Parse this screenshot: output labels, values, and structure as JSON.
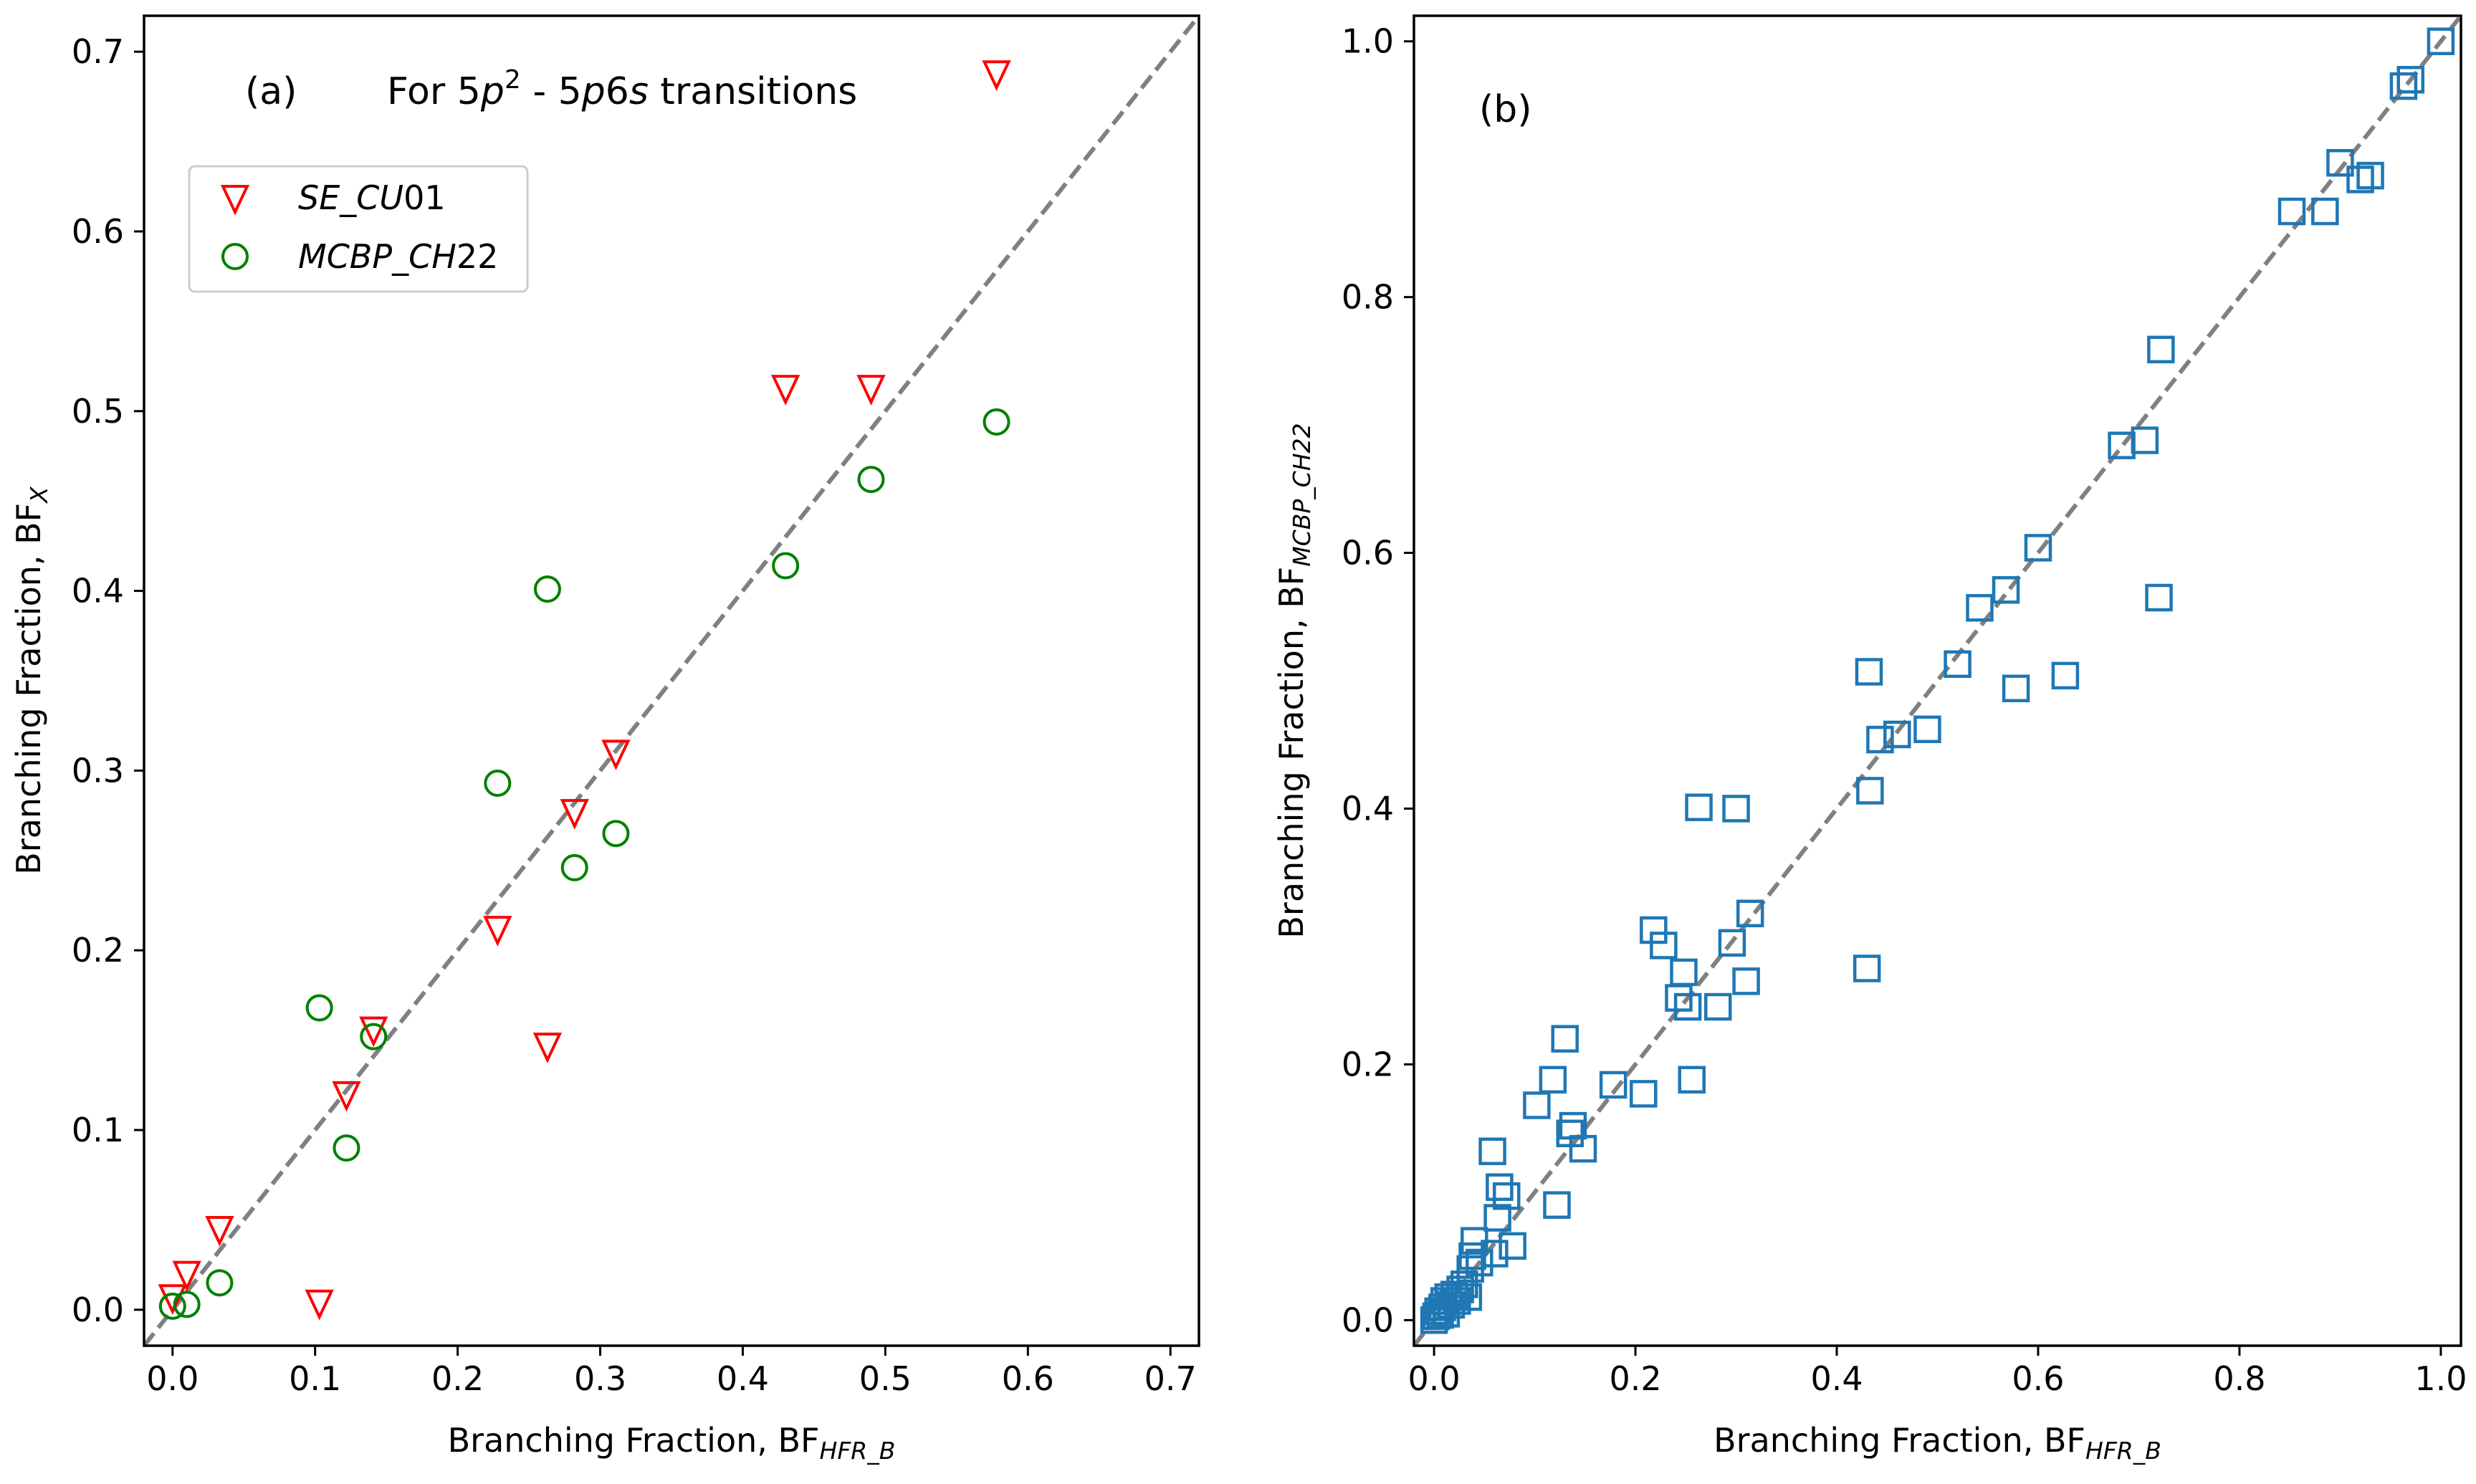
{
  "chart_data": [
    {
      "type": "scatter",
      "panel_label": "(a)",
      "annotation": {
        "prefix": "For 5",
        "p": "p",
        "sup": "2",
        "mid": " - 5",
        "p6": "p",
        "six": "6",
        "s": "s",
        "suffix": " transitions"
      },
      "xlabel": {
        "main": "Branching Fraction, BF",
        "sub": "HFR_B"
      },
      "ylabel": {
        "main": "Branching Fraction, BF",
        "sub": "X"
      },
      "xlim": [
        -0.02,
        0.72
      ],
      "ylim": [
        -0.02,
        0.72
      ],
      "xticks": [
        0.0,
        0.1,
        0.2,
        0.3,
        0.4,
        0.5,
        0.6,
        0.7
      ],
      "yticks": [
        0.0,
        0.1,
        0.2,
        0.3,
        0.4,
        0.5,
        0.6,
        0.7
      ],
      "tick_labels": [
        "0.0",
        "0.1",
        "0.2",
        "0.3",
        "0.4",
        "0.5",
        "0.6",
        "0.7"
      ],
      "reference_line": "y = x",
      "legend_position": "upper-left",
      "series": [
        {
          "name_main": "SE_CU",
          "name_tail": "01",
          "marker": "triangle-down",
          "color": "#ff0000",
          "points": [
            [
              0.0,
              0.007
            ],
            [
              0.01,
              0.02
            ],
            [
              0.033,
              0.045
            ],
            [
              0.103,
              0.004
            ],
            [
              0.122,
              0.12
            ],
            [
              0.141,
              0.156
            ],
            [
              0.228,
              0.212
            ],
            [
              0.263,
              0.147
            ],
            [
              0.282,
              0.277
            ],
            [
              0.311,
              0.31
            ],
            [
              0.43,
              0.513
            ],
            [
              0.49,
              0.513
            ],
            [
              0.578,
              0.688
            ]
          ]
        },
        {
          "name_main": "MCBP_CH",
          "name_tail": "22",
          "marker": "circle",
          "color": "#008000",
          "points": [
            [
              0.0,
              0.002
            ],
            [
              0.01,
              0.003
            ],
            [
              0.033,
              0.015
            ],
            [
              0.103,
              0.168
            ],
            [
              0.122,
              0.09
            ],
            [
              0.141,
              0.152
            ],
            [
              0.228,
              0.293
            ],
            [
              0.263,
              0.401
            ],
            [
              0.282,
              0.246
            ],
            [
              0.311,
              0.265
            ],
            [
              0.43,
              0.414
            ],
            [
              0.49,
              0.462
            ],
            [
              0.578,
              0.494
            ]
          ]
        }
      ]
    },
    {
      "type": "scatter",
      "panel_label": "(b)",
      "xlabel": {
        "main": "Branching Fraction, BF",
        "sub": "HFR_B"
      },
      "ylabel": {
        "main": "Branching Fraction, BF",
        "sub": "MCBP_CH22"
      },
      "xlim": [
        -0.02,
        1.02
      ],
      "ylim": [
        -0.02,
        1.02
      ],
      "xticks": [
        0.0,
        0.2,
        0.4,
        0.6,
        0.8,
        1.0
      ],
      "yticks": [
        0.0,
        0.2,
        0.4,
        0.6,
        0.8,
        1.0
      ],
      "tick_labels": [
        "0.0",
        "0.2",
        "0.4",
        "0.6",
        "0.8",
        "1.0"
      ],
      "reference_line": "y = x",
      "series": [
        {
          "marker": "square",
          "color": "#1f77b4",
          "points": [
            [
              0.0,
              0.0
            ],
            [
              0.002,
              0.003
            ],
            [
              0.004,
              0.007
            ],
            [
              0.006,
              0.004
            ],
            [
              0.008,
              0.01
            ],
            [
              0.01,
              0.015
            ],
            [
              0.012,
              0.005
            ],
            [
              0.014,
              0.018
            ],
            [
              0.017,
              0.012
            ],
            [
              0.02,
              0.02
            ],
            [
              0.023,
              0.015
            ],
            [
              0.026,
              0.024
            ],
            [
              0.03,
              0.028
            ],
            [
              0.034,
              0.018
            ],
            [
              0.036,
              0.04
            ],
            [
              0.038,
              0.05
            ],
            [
              0.04,
              0.062
            ],
            [
              0.045,
              0.045
            ],
            [
              0.058,
              0.132
            ],
            [
              0.06,
              0.052
            ],
            [
              0.063,
              0.08
            ],
            [
              0.065,
              0.104
            ],
            [
              0.072,
              0.097
            ],
            [
              0.078,
              0.058
            ],
            [
              0.102,
              0.168
            ],
            [
              0.118,
              0.188
            ],
            [
              0.122,
              0.09
            ],
            [
              0.13,
              0.22
            ],
            [
              0.135,
              0.146
            ],
            [
              0.138,
              0.152
            ],
            [
              0.148,
              0.134
            ],
            [
              0.178,
              0.184
            ],
            [
              0.208,
              0.177
            ],
            [
              0.218,
              0.305
            ],
            [
              0.228,
              0.293
            ],
            [
              0.243,
              0.252
            ],
            [
              0.248,
              0.272
            ],
            [
              0.252,
              0.245
            ],
            [
              0.256,
              0.188
            ],
            [
              0.263,
              0.401
            ],
            [
              0.282,
              0.245
            ],
            [
              0.296,
              0.295
            ],
            [
              0.3,
              0.4
            ],
            [
              0.31,
              0.265
            ],
            [
              0.314,
              0.318
            ],
            [
              0.43,
              0.275
            ],
            [
              0.432,
              0.507
            ],
            [
              0.433,
              0.414
            ],
            [
              0.443,
              0.454
            ],
            [
              0.46,
              0.458
            ],
            [
              0.49,
              0.462
            ],
            [
              0.52,
              0.513
            ],
            [
              0.542,
              0.557
            ],
            [
              0.568,
              0.571
            ],
            [
              0.578,
              0.494
            ],
            [
              0.6,
              0.604
            ],
            [
              0.627,
              0.504
            ],
            [
              0.683,
              0.684
            ],
            [
              0.706,
              0.688
            ],
            [
              0.72,
              0.565
            ],
            [
              0.722,
              0.759
            ],
            [
              0.852,
              0.867
            ],
            [
              0.885,
              0.867
            ],
            [
              0.9,
              0.905
            ],
            [
              0.92,
              0.892
            ],
            [
              0.93,
              0.895
            ],
            [
              0.963,
              0.965
            ],
            [
              0.97,
              0.97
            ],
            [
              1.0,
              1.0
            ]
          ]
        }
      ]
    }
  ]
}
